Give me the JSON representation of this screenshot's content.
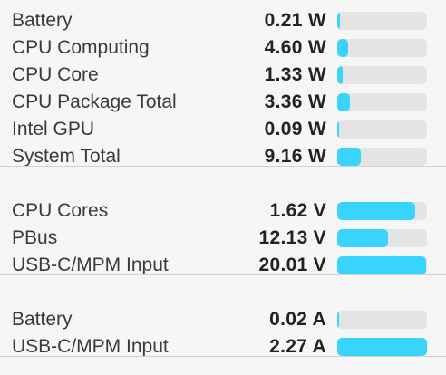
{
  "sections": [
    {
      "rows": [
        {
          "label": "Battery",
          "reading": "0.21 W",
          "bar": 3
        },
        {
          "label": "CPU Computing",
          "reading": "4.60 W",
          "bar": 12
        },
        {
          "label": "CPU Core",
          "reading": "1.33 W",
          "bar": 6
        },
        {
          "label": "CPU Package Total",
          "reading": "3.36 W",
          "bar": 14
        },
        {
          "label": "Intel GPU",
          "reading": "0.09 W",
          "bar": 2
        },
        {
          "label": "System Total",
          "reading": "9.16 W",
          "bar": 26
        }
      ]
    },
    {
      "rows": [
        {
          "label": "CPU Cores",
          "reading": "1.62 V",
          "bar": 87
        },
        {
          "label": "PBus",
          "reading": "12.13 V",
          "bar": 57
        },
        {
          "label": "USB-C/MPM Input",
          "reading": "20.01 V",
          "bar": 99
        }
      ]
    },
    {
      "rows": [
        {
          "label": "Battery",
          "reading": "0.02 A",
          "bar": 2
        },
        {
          "label": "USB-C/MPM Input",
          "reading": "2.27 A",
          "bar": 100
        }
      ]
    }
  ]
}
